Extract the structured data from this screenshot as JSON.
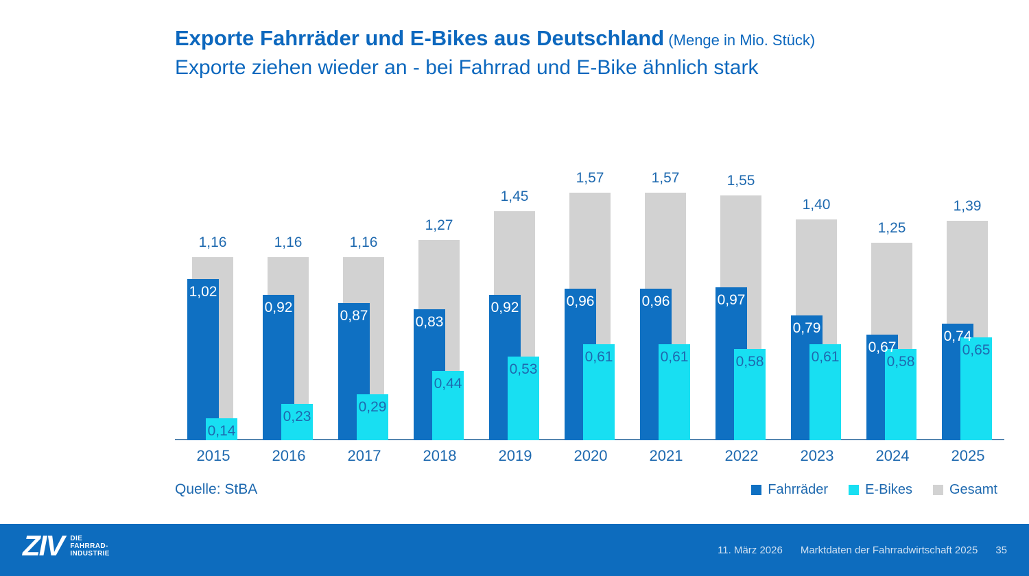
{
  "slide": {
    "title": "Exporte Fahrräder und E-Bikes aus Deutschland",
    "title_suffix": " (Menge in Mio. Stück)",
    "subtitle": "Exporte ziehen wieder an - bei Fahrrad und E-Bike ähnlich stark",
    "source": "Quelle: StBA"
  },
  "chart_data": {
    "type": "bar",
    "title": "Exporte Fahrräder und E-Bikes aus Deutschland (Menge in Mio. Stück)",
    "subtitle": "Exporte ziehen wieder an - bei Fahrrad und E-Bike ähnlich stark",
    "categories": [
      "2015",
      "2016",
      "2017",
      "2018",
      "2019",
      "2020",
      "2021",
      "2022",
      "2023",
      "2024",
      "2025"
    ],
    "series": [
      {
        "name": "Fahrräder",
        "color": "#0f70c2",
        "label_color": "#ffffff",
        "values": [
          1.02,
          0.92,
          0.87,
          0.83,
          0.92,
          0.96,
          0.96,
          0.97,
          0.79,
          0.67,
          0.74
        ],
        "labels": [
          "1,02",
          "0,92",
          "0,87",
          "0,83",
          "0,92",
          "0,96",
          "0,96",
          "0,97",
          "0,79",
          "0,67",
          "0,74"
        ]
      },
      {
        "name": "E-Bikes",
        "color": "#18dff2",
        "label_color": "#1e69af",
        "values": [
          0.14,
          0.23,
          0.29,
          0.44,
          0.53,
          0.61,
          0.61,
          0.58,
          0.61,
          0.58,
          0.65
        ],
        "labels": [
          "0,14",
          "0,23",
          "0,29",
          "0,44",
          "0,53",
          "0,61",
          "0,61",
          "0,58",
          "0,61",
          "0,58",
          "0,65"
        ]
      },
      {
        "name": "Gesamt",
        "color": "#d2d2d2",
        "label_color": "#1e69af",
        "values": [
          1.16,
          1.16,
          1.16,
          1.27,
          1.45,
          1.57,
          1.57,
          1.55,
          1.4,
          1.25,
          1.39
        ],
        "labels": [
          "1,16",
          "1,16",
          "1,16",
          "1,27",
          "1,45",
          "1,57",
          "1,57",
          "1,55",
          "1,40",
          "1,25",
          "1,39"
        ]
      }
    ],
    "xlabel": "",
    "ylabel": "",
    "ylim": [
      0,
      1.8
    ],
    "grid": false,
    "legend_position": "bottom-right",
    "source": "Quelle: StBA",
    "accent_text_color": "#1e69af",
    "title_color": "#0d68be"
  },
  "footer": {
    "logo_text": "ZIV",
    "logo_sub_line1": "DIE",
    "logo_sub_line2": "FAHRRAD-",
    "logo_sub_line3": "INDUSTRIE",
    "date": "11. März 2026",
    "document": "Marktdaten der Fahrradwirtschaft 2025",
    "page": "35"
  }
}
